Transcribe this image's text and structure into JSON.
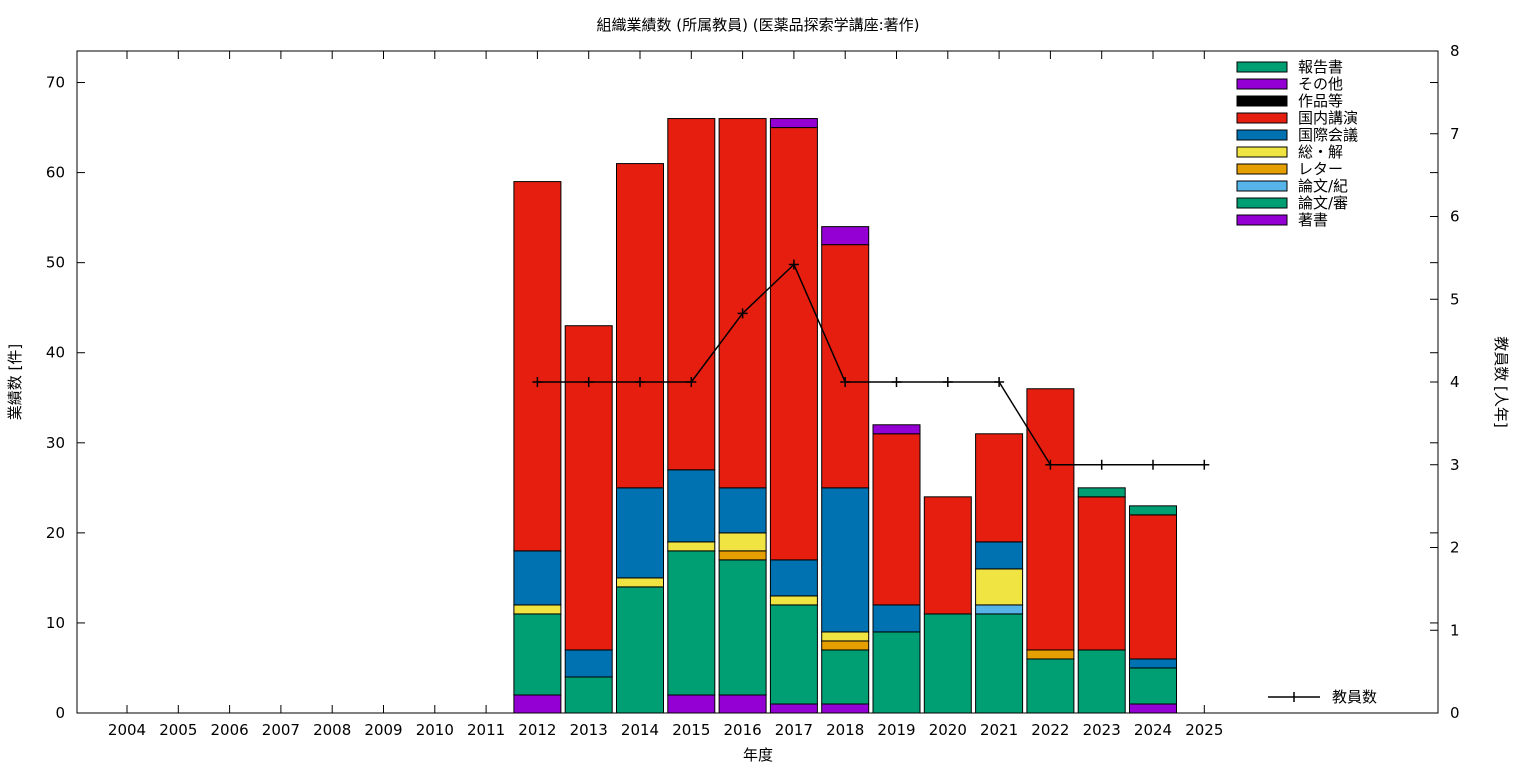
{
  "chart_data": {
    "type": "bar",
    "stacked": true,
    "title": "組織業績数 (所属教員) (医薬品探索学講座:著作)",
    "xlabel": "年度",
    "ylabel": "業績数 [件]",
    "y2label": "教員数 [人年]",
    "ylim": [
      0,
      73.5
    ],
    "y2lim": [
      0,
      8
    ],
    "yticks": [
      0,
      10,
      20,
      30,
      40,
      50,
      60,
      70
    ],
    "y2ticks": [
      0,
      1,
      2,
      3,
      4,
      5,
      6,
      7,
      8
    ],
    "grid": false,
    "legend_position": "top-right",
    "categories": [
      "2004",
      "2005",
      "2006",
      "2007",
      "2008",
      "2009",
      "2010",
      "2011",
      "2012",
      "2013",
      "2014",
      "2015",
      "2016",
      "2017",
      "2018",
      "2019",
      "2020",
      "2021",
      "2022",
      "2023",
      "2024",
      "2025"
    ],
    "series": [
      {
        "name": "著書",
        "color": "#9400d3",
        "values": [
          0,
          0,
          0,
          0,
          0,
          0,
          0,
          0,
          2,
          0,
          0,
          2,
          2,
          1,
          1,
          0,
          0,
          0,
          0,
          0,
          1,
          0
        ]
      },
      {
        "name": "論文/審",
        "color": "#009e73",
        "values": [
          0,
          0,
          0,
          0,
          0,
          0,
          0,
          0,
          9,
          4,
          14,
          16,
          15,
          11,
          6,
          9,
          11,
          11,
          6,
          7,
          4,
          0
        ]
      },
      {
        "name": "論文/紀",
        "color": "#56b4e9",
        "values": [
          0,
          0,
          0,
          0,
          0,
          0,
          0,
          0,
          0,
          0,
          0,
          0,
          0,
          0,
          0,
          0,
          0,
          1,
          0,
          0,
          0,
          0
        ]
      },
      {
        "name": "レター",
        "color": "#e69f00",
        "values": [
          0,
          0,
          0,
          0,
          0,
          0,
          0,
          0,
          0,
          0,
          0,
          0,
          1,
          0,
          1,
          0,
          0,
          0,
          1,
          0,
          0,
          0
        ]
      },
      {
        "name": "総・解",
        "color": "#f0e442",
        "values": [
          0,
          0,
          0,
          0,
          0,
          0,
          0,
          0,
          1,
          0,
          1,
          1,
          2,
          1,
          1,
          0,
          0,
          4,
          0,
          0,
          0,
          0
        ]
      },
      {
        "name": "国際会議",
        "color": "#0072b2",
        "values": [
          0,
          0,
          0,
          0,
          0,
          0,
          0,
          0,
          6,
          3,
          10,
          8,
          5,
          4,
          16,
          3,
          0,
          3,
          0,
          0,
          1,
          0
        ]
      },
      {
        "name": "国内講演",
        "color": "#e51e10",
        "values": [
          0,
          0,
          0,
          0,
          0,
          0,
          0,
          0,
          41,
          36,
          36,
          39,
          41,
          48,
          27,
          19,
          13,
          12,
          29,
          17,
          16,
          0
        ]
      },
      {
        "name": "作品等",
        "color": "#000000",
        "values": [
          0,
          0,
          0,
          0,
          0,
          0,
          0,
          0,
          0,
          0,
          0,
          0,
          0,
          0,
          0,
          0,
          0,
          0,
          0,
          0,
          0,
          0
        ]
      },
      {
        "name": "その他",
        "color": "#9400d3",
        "values": [
          0,
          0,
          0,
          0,
          0,
          0,
          0,
          0,
          0,
          0,
          0,
          0,
          0,
          1,
          2,
          1,
          0,
          0,
          0,
          0,
          0,
          0
        ]
      },
      {
        "name": "報告書",
        "color": "#009e73",
        "values": [
          0,
          0,
          0,
          0,
          0,
          0,
          0,
          0,
          0,
          0,
          0,
          0,
          0,
          0,
          0,
          0,
          0,
          0,
          0,
          1,
          1,
          0
        ]
      }
    ],
    "line_series": {
      "name": "教員数",
      "color": "#000000",
      "x": [
        "2012",
        "2013",
        "2014",
        "2015",
        "2016",
        "2017",
        "2018",
        "2019",
        "2020",
        "2021",
        "2022",
        "2023",
        "2024",
        "2025"
      ],
      "values": [
        4,
        4,
        4,
        4,
        4.83,
        5.42,
        4,
        4,
        4,
        4,
        3,
        3,
        3,
        3
      ]
    },
    "legend_order": [
      "報告書",
      "その他",
      "作品等",
      "国内講演",
      "国際会議",
      "総・解",
      "レター",
      "論文/紀",
      "論文/審",
      "著書"
    ]
  }
}
